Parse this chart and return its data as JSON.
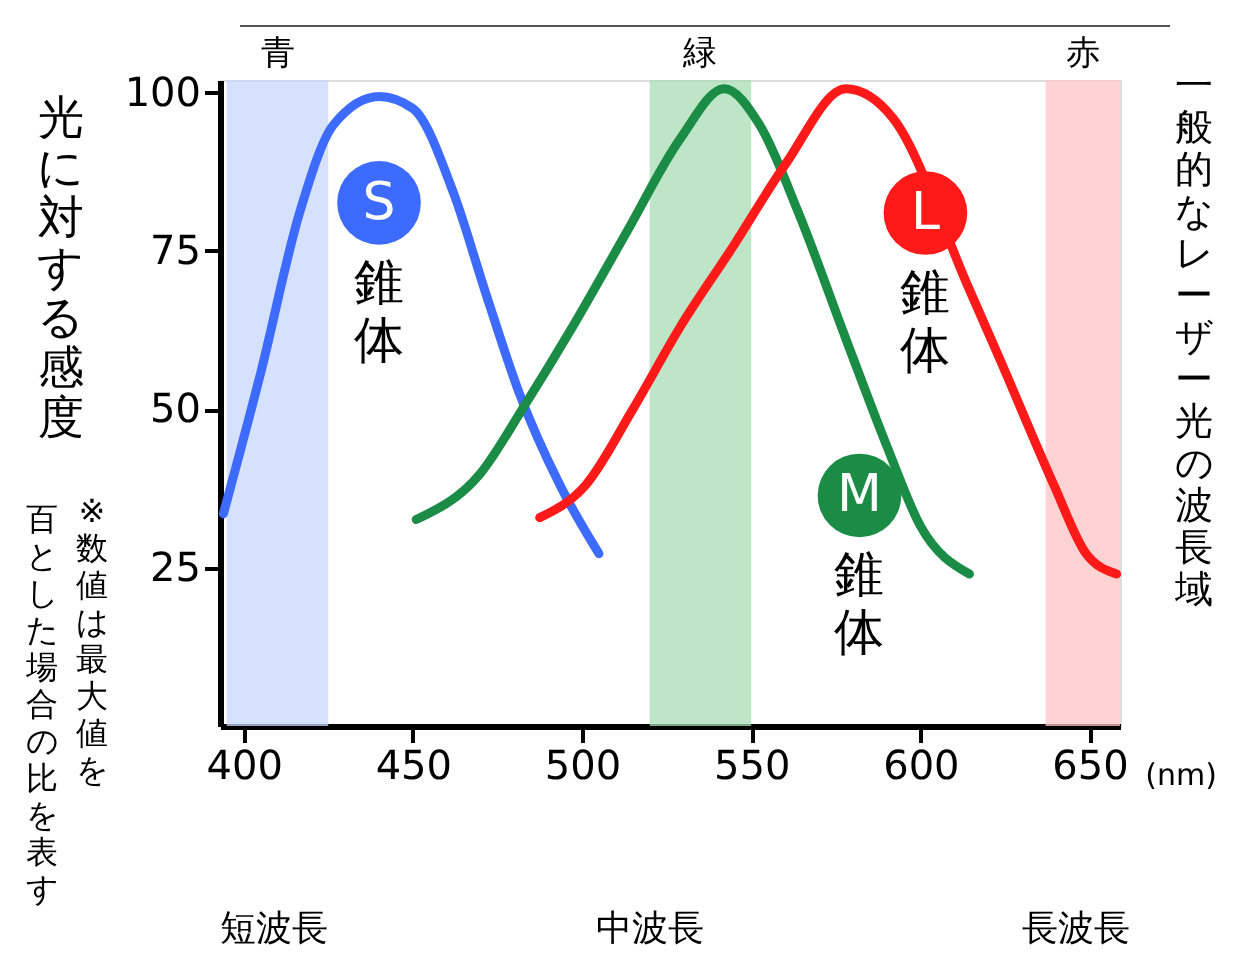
{
  "chart_data": {
    "type": "line",
    "ylabel": "光に対する感度",
    "xlabel": "(nm)",
    "xlim": [
      393,
      659
    ],
    "ylim": [
      0,
      102
    ],
    "xticks": [
      400,
      450,
      500,
      550,
      600,
      650
    ],
    "yticks": [
      25,
      50,
      75,
      100
    ],
    "grid": false,
    "line_style": "solid",
    "series": [
      {
        "color": "#3d6bff",
        "x": [
          394,
          405,
          416.5,
          426.5,
          440,
          450,
          462,
          471.5,
          481.5,
          493.5,
          505
        ],
        "values": [
          33.5,
          55.7,
          81,
          94.9,
          99.4,
          97.5,
          84.2,
          68.4,
          52.5,
          38,
          27.2
        ]
      },
      {
        "color": "#1a8c45",
        "x": [
          451,
          470,
          483,
          497.5,
          513,
          529,
          542,
          552.5,
          564,
          578,
          590,
          600,
          614.5
        ],
        "values": [
          32.6,
          39.9,
          50.6,
          63.3,
          77.8,
          92.7,
          100.6,
          94.9,
          81,
          61.1,
          44.3,
          31.6,
          24
        ]
      },
      {
        "color": "#ff1a1a",
        "x": [
          487.5,
          501,
          515,
          529,
          545,
          560,
          578,
          592,
          614,
          623.5,
          639.5,
          649,
          658
        ],
        "values": [
          32.9,
          38,
          50,
          63,
          76,
          88.6,
          100.6,
          95.9,
          69.5,
          57.9,
          38,
          27.2,
          24
        ]
      }
    ],
    "bands": [
      {
        "axis": "x",
        "from": 395,
        "to": 425,
        "label": "青",
        "color": "#c8d5ff"
      },
      {
        "axis": "x",
        "from": 520,
        "to": 550,
        "label": "緑",
        "color": "#a9dcb6"
      },
      {
        "axis": "x",
        "from": 637,
        "to": 659,
        "label": "赤",
        "color": "#ffc4c4"
      }
    ],
    "annotations": [
      {
        "text": "S",
        "x": 440,
        "y": 82.6
      },
      {
        "text": "M",
        "x": 582,
        "y": 36.4
      },
      {
        "text": "L",
        "x": 601.5,
        "y": 81
      },
      "錐体",
      "錐体",
      "錐体",
      "一般的なレーザー光の波長域",
      "※数値は最大値を",
      "百とした場合の比を表す",
      "短波長",
      "中波長",
      "長波長"
    ]
  }
}
